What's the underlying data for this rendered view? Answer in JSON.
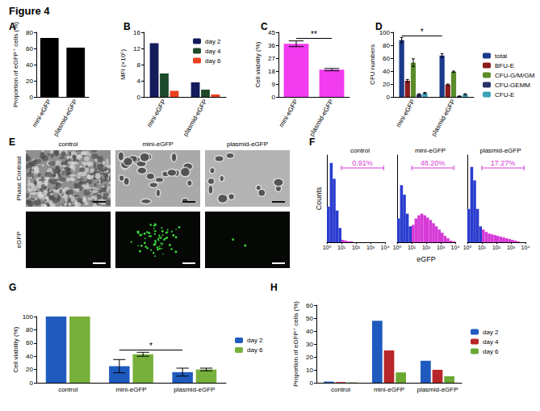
{
  "title": "Figure 4",
  "chart_data": [
    {
      "panel": "A",
      "type": "bar",
      "ylabel": "Proportion of eGFP⁺ cells (%)",
      "categories": [
        "mini-eGFP",
        "plasmid-eGFP"
      ],
      "values": [
        73,
        61
      ],
      "color": "#000000",
      "ylim": [
        0,
        80
      ],
      "yticks": [
        0,
        20,
        40,
        60,
        80
      ],
      "grid": false
    },
    {
      "panel": "B",
      "type": "bar",
      "ylabel": "MFI (×10⁵)",
      "categories": [
        "mini-eGFP",
        "plasmid-eGFP"
      ],
      "series": [
        {
          "name": "day 2",
          "color": "#141c5c",
          "values": [
            13.3,
            3.6
          ]
        },
        {
          "name": "day 4",
          "color": "#1d4a2a",
          "values": [
            5.8,
            1.8
          ]
        },
        {
          "name": "day 6",
          "color": "#e8401c",
          "values": [
            1.5,
            0.6
          ]
        }
      ],
      "ylim": [
        0,
        16
      ],
      "yticks": [
        0,
        4,
        8,
        12,
        16
      ],
      "grid": false,
      "legend": "top-right"
    },
    {
      "panel": "C",
      "type": "bar",
      "ylabel": "Cell viability (%)",
      "categories": [
        "mini-eGFP",
        "plasmid-eGFP"
      ],
      "values": [
        37,
        19
      ],
      "errors": [
        2,
        0.8
      ],
      "color": "#f23cf0",
      "ylim": [
        0,
        45
      ],
      "yticks": [
        0,
        9,
        18,
        27,
        36,
        45
      ],
      "grid": false,
      "significance": [
        {
          "text": "**",
          "between": [
            "mini-eGFP",
            "plasmid-eGFP"
          ],
          "y": 41
        }
      ]
    },
    {
      "panel": "D",
      "type": "bar",
      "ylabel": "CFU numbers",
      "categories": [
        "mini-eGFP",
        "plasmid-eGFP"
      ],
      "series": [
        {
          "name": "total",
          "color": "#1b3a8a",
          "values": [
            88,
            64
          ],
          "errors": [
            4,
            3
          ]
        },
        {
          "name": "BFU-E",
          "color": "#8b1c1c",
          "values": [
            25,
            19
          ],
          "errors": [
            2,
            1
          ]
        },
        {
          "name": "CFU-G/M/GM",
          "color": "#5b8c2a",
          "values": [
            53,
            39
          ],
          "errors": [
            6,
            1
          ]
        },
        {
          "name": "CFU-GEMM",
          "color": "#28306a",
          "values": [
            4,
            1
          ],
          "errors": [
            1,
            0.5
          ]
        },
        {
          "name": "CFU-E",
          "color": "#3aa0b8",
          "values": [
            6,
            4
          ],
          "errors": [
            1,
            1
          ]
        }
      ],
      "ylim": [
        0,
        100
      ],
      "yticks": [
        0,
        20,
        40,
        60,
        80,
        100
      ],
      "grid": false,
      "legend": "right",
      "significance": [
        {
          "text": "*",
          "between": [
            "mini-eGFP",
            "plasmid-eGFP"
          ],
          "y": 95
        }
      ]
    },
    {
      "panel": "F",
      "type": "histogram",
      "xlabel": "eGFP",
      "ylabel": "Counts",
      "bins": [
        0,
        0.2,
        0.4,
        0.6,
        0.8,
        1,
        1.2,
        1.4,
        1.6,
        1.8,
        2,
        2.2,
        2.4,
        2.6,
        2.8,
        3,
        3.2,
        3.4,
        3.6,
        3.8,
        4
      ],
      "xlim": [
        0,
        4
      ],
      "xticks": [
        {
          "value": 0,
          "label": "10⁰"
        },
        {
          "value": 1,
          "label": "10¹"
        },
        {
          "value": 2,
          "label": "10²"
        },
        {
          "value": 3,
          "label": "10³"
        },
        {
          "value": 4,
          "label": "10⁴"
        }
      ],
      "ylim": [
        0,
        110
      ],
      "tick_labels": "x",
      "grid": false,
      "subplots": [
        {
          "title": "control",
          "annotation": "0.91%",
          "gate": [
            1,
            3.9
          ],
          "series": [
            {
              "color": "#2a3ccf",
              "values": [
                45,
                100,
                80,
                40,
                18,
                0,
                0,
                0,
                0,
                0,
                0,
                0,
                0,
                0,
                0,
                0,
                0,
                0,
                0,
                0
              ]
            },
            {
              "color": "#d63ad6",
              "values": [
                0,
                0,
                0,
                0,
                0,
                3,
                2,
                1,
                1,
                0,
                0,
                0,
                0,
                0,
                0,
                0,
                0,
                0,
                0,
                0
              ]
            }
          ]
        },
        {
          "title": "mini-eGFP",
          "annotation": "48.20%",
          "gate": [
            1,
            3.9
          ],
          "series": [
            {
              "color": "#2a3ccf",
              "values": [
                30,
                72,
                60,
                36,
                20,
                0,
                0,
                0,
                0,
                0,
                0,
                0,
                0,
                0,
                0,
                0,
                0,
                0,
                0,
                0
              ]
            },
            {
              "color": "#d63ad6",
              "values": [
                0,
                0,
                0,
                0,
                0,
                22,
                30,
                34,
                36,
                34,
                31,
                28,
                24,
                20,
                16,
                12,
                8,
                5,
                2,
                1
              ]
            }
          ]
        },
        {
          "title": "plasmid-eGFP",
          "annotation": "17.27%",
          "gate": [
            1,
            3.9
          ],
          "series": [
            {
              "color": "#2a3ccf",
              "values": [
                42,
                95,
                78,
                42,
                20,
                0,
                0,
                0,
                0,
                0,
                0,
                0,
                0,
                0,
                0,
                0,
                0,
                0,
                0,
                0
              ]
            },
            {
              "color": "#d63ad6",
              "values": [
                0,
                0,
                0,
                0,
                0,
                16,
                13,
                11,
                10,
                9,
                8,
                7,
                6,
                5,
                4,
                3,
                2,
                1,
                0,
                0
              ]
            }
          ]
        }
      ]
    },
    {
      "panel": "G",
      "type": "bar",
      "ylabel": "Cell viability (%)",
      "categories": [
        "control",
        "mini-eGFP",
        "plasmid-eGFP"
      ],
      "series": [
        {
          "name": "day 2",
          "color": "#1f5bbf",
          "values": [
            100,
            25,
            16
          ],
          "errors": [
            0,
            10,
            6
          ]
        },
        {
          "name": "day 6",
          "color": "#76b03a",
          "values": [
            100,
            43,
            20
          ],
          "errors": [
            0,
            3,
            2
          ]
        }
      ],
      "ylim": [
        0,
        100
      ],
      "yticks": [
        0,
        20,
        40,
        60,
        80,
        100
      ],
      "grid": false,
      "legend": "right",
      "significance": [
        {
          "text": "*",
          "between": [
            "mini-eGFP",
            "plasmid-eGFP"
          ],
          "y": 50
        }
      ]
    },
    {
      "panel": "H",
      "type": "bar",
      "ylabel": "Proportion of eGFP⁺ cells (%)",
      "categories": [
        "control",
        "mini-eGFP",
        "plasmid-eGFP"
      ],
      "series": [
        {
          "name": "day 2",
          "color": "#1f5bbf",
          "values": [
            0.9,
            48,
            17
          ]
        },
        {
          "name": "day 4",
          "color": "#b8262a",
          "values": [
            0.5,
            25,
            10
          ]
        },
        {
          "name": "day 6",
          "color": "#6aa832",
          "values": [
            0.3,
            8,
            5
          ]
        }
      ],
      "ylim": [
        0,
        60
      ],
      "yticks": [
        0,
        10,
        20,
        30,
        40,
        50,
        60
      ],
      "grid": false,
      "legend": "right"
    }
  ],
  "images": {
    "panel": "E",
    "columns": [
      "control",
      "mini-eGFP",
      "plasmid-eGFP"
    ],
    "rows": [
      "Phase Contrast",
      "eGFP"
    ]
  }
}
